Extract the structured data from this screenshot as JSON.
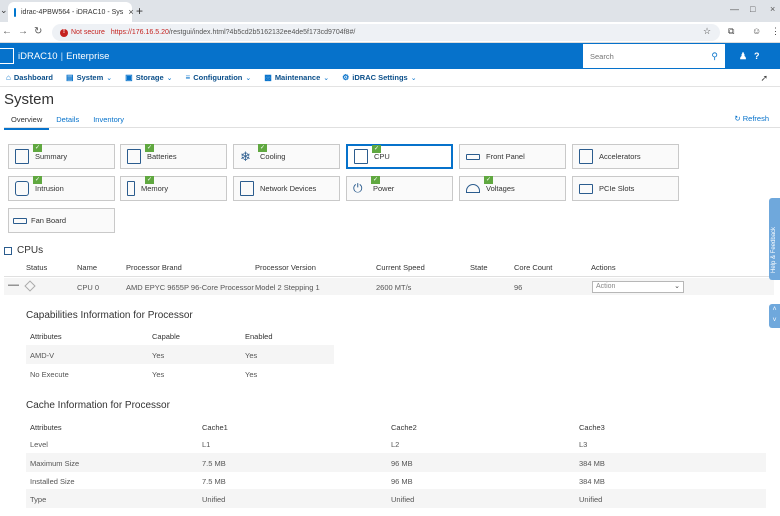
{
  "browser": {
    "tab_title": "idrac-4PBW564 - iDRAC10 - Sys",
    "not_secure": "Not secure",
    "url_host": "https://176.16.5.20",
    "url_path": "/restgui/index.html?4b5cd2b5162132ee4de5f173cd9704f8#/"
  },
  "header": {
    "product": "iDRAC10",
    "edition": "Enterprise",
    "search_placeholder": "Search"
  },
  "menu": [
    {
      "label": "Dashboard",
      "icon": "home-icon",
      "has_dropdown": false
    },
    {
      "label": "System",
      "icon": "system-icon",
      "has_dropdown": true
    },
    {
      "label": "Storage",
      "icon": "storage-icon",
      "has_dropdown": true
    },
    {
      "label": "Configuration",
      "icon": "config-icon",
      "has_dropdown": true
    },
    {
      "label": "Maintenance",
      "icon": "maintenance-icon",
      "has_dropdown": true
    },
    {
      "label": "iDRAC Settings",
      "icon": "idrac-settings-icon",
      "has_dropdown": true
    }
  ],
  "page": {
    "title": "System",
    "tabs": [
      "Overview",
      "Details",
      "Inventory"
    ],
    "active_tab": "Overview",
    "refresh": "Refresh"
  },
  "tiles": [
    {
      "label": "Summary",
      "check": true
    },
    {
      "label": "Batteries",
      "check": true
    },
    {
      "label": "Cooling",
      "check": true
    },
    {
      "label": "CPU",
      "check": true,
      "selected": true
    },
    {
      "label": "Front Panel",
      "check": false
    },
    {
      "label": "Accelerators",
      "check": false
    },
    {
      "label": "Intrusion",
      "check": true
    },
    {
      "label": "Memory",
      "check": true
    },
    {
      "label": "Network Devices",
      "check": false
    },
    {
      "label": "Power",
      "check": true
    },
    {
      "label": "Voltages",
      "check": true
    },
    {
      "label": "PCIe Slots",
      "check": false
    },
    {
      "label": "Fan Board",
      "check": false
    }
  ],
  "cpus": {
    "section_title": "CPUs",
    "columns": [
      "Status",
      "Name",
      "Processor Brand",
      "Processor Version",
      "Current Speed",
      "State",
      "Core Count",
      "Actions"
    ],
    "row": {
      "name": "CPU 0",
      "brand": "AMD EPYC 9655P 96-Core Processor",
      "version": "Model 2 Stepping 1",
      "speed": "2600 MT/s",
      "state": "",
      "cores": "96",
      "action": "Action"
    }
  },
  "capabilities": {
    "title": "Capabilities Information for Processor",
    "columns": [
      "Attributes",
      "Capable",
      "Enabled"
    ],
    "rows": [
      [
        "AMD-V",
        "Yes",
        "Yes"
      ],
      [
        "No Execute",
        "Yes",
        "Yes"
      ]
    ]
  },
  "cache": {
    "title": "Cache Information for Processor",
    "columns": [
      "Attributes",
      "Cache1",
      "Cache2",
      "Cache3"
    ],
    "rows": [
      [
        "Level",
        "L1",
        "L2",
        "L3"
      ],
      [
        "Maximum Size",
        "7.5 MB",
        "96 MB",
        "384 MB"
      ],
      [
        "Installed Size",
        "7.5 MB",
        "96 MB",
        "384 MB"
      ],
      [
        "Type",
        "Unified",
        "Unified",
        "Unified"
      ]
    ]
  },
  "feedback": "Help & Feedback"
}
